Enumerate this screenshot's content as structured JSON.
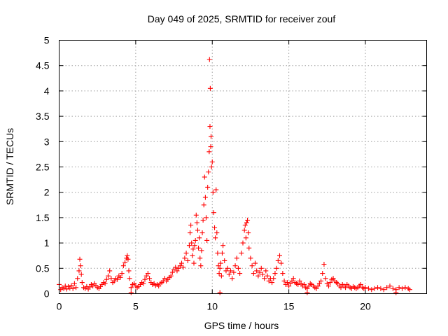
{
  "chart_data": {
    "type": "scatter",
    "title": "Day 049 of 2025, SRMTID for receiver zouf",
    "xlabel": "GPS time / hours",
    "ylabel": "SRMTID / TECUs",
    "xlim": [
      0,
      24
    ],
    "ylim": [
      0,
      5
    ],
    "x_ticks": [
      0,
      5,
      10,
      15,
      20
    ],
    "x_tick_labels": [
      "0",
      "5",
      "10",
      "15",
      "20"
    ],
    "y_ticks": [
      0,
      0.5,
      1,
      1.5,
      2,
      2.5,
      3,
      3.5,
      4,
      4.5,
      5
    ],
    "y_tick_labels": [
      "0",
      "0.5",
      "1",
      "1.5",
      "2",
      "2.5",
      "3",
      "3.5",
      "4",
      "4.5",
      "5"
    ],
    "grid": true,
    "marker": "+",
    "series": [
      {
        "name": "SRMTID",
        "color": "#ff0000",
        "points": [
          [
            0.0,
            0.18
          ],
          [
            0.1,
            0.08
          ],
          [
            0.2,
            0.12
          ],
          [
            0.3,
            0.1
          ],
          [
            0.4,
            0.15
          ],
          [
            0.5,
            0.09
          ],
          [
            0.6,
            0.14
          ],
          [
            0.7,
            0.11
          ],
          [
            0.8,
            0.16
          ],
          [
            0.9,
            0.1
          ],
          [
            1.0,
            0.2
          ],
          [
            1.1,
            0.12
          ],
          [
            1.2,
            0.3
          ],
          [
            1.3,
            0.45
          ],
          [
            1.35,
            0.68
          ],
          [
            1.4,
            0.55
          ],
          [
            1.45,
            0.38
          ],
          [
            1.5,
            0.22
          ],
          [
            1.6,
            0.12
          ],
          [
            1.7,
            0.1
          ],
          [
            1.8,
            0.14
          ],
          [
            1.9,
            0.09
          ],
          [
            2.0,
            0.13
          ],
          [
            2.1,
            0.18
          ],
          [
            2.2,
            0.15
          ],
          [
            2.3,
            0.2
          ],
          [
            2.4,
            0.16
          ],
          [
            2.5,
            0.12
          ],
          [
            2.6,
            0.1
          ],
          [
            2.7,
            0.14
          ],
          [
            2.8,
            0.18
          ],
          [
            2.9,
            0.22
          ],
          [
            3.0,
            0.2
          ],
          [
            3.1,
            0.28
          ],
          [
            3.2,
            0.35
          ],
          [
            3.3,
            0.45
          ],
          [
            3.4,
            0.3
          ],
          [
            3.5,
            0.22
          ],
          [
            3.6,
            0.25
          ],
          [
            3.7,
            0.3
          ],
          [
            3.8,
            0.28
          ],
          [
            3.9,
            0.35
          ],
          [
            4.0,
            0.32
          ],
          [
            4.1,
            0.4
          ],
          [
            4.2,
            0.55
          ],
          [
            4.3,
            0.62
          ],
          [
            4.4,
            0.7
          ],
          [
            4.45,
            0.75
          ],
          [
            4.5,
            0.68
          ],
          [
            4.55,
            0.45
          ],
          [
            4.6,
            0.3
          ],
          [
            4.7,
            0.12
          ],
          [
            4.8,
            0.18
          ],
          [
            4.9,
            0.2
          ],
          [
            5.0,
            0.15
          ],
          [
            5.1,
            0.12
          ],
          [
            5.2,
            0.14
          ],
          [
            5.3,
            0.18
          ],
          [
            5.4,
            0.22
          ],
          [
            5.5,
            0.2
          ],
          [
            5.6,
            0.28
          ],
          [
            5.7,
            0.35
          ],
          [
            5.8,
            0.4
          ],
          [
            5.9,
            0.3
          ],
          [
            6.0,
            0.22
          ],
          [
            6.1,
            0.18
          ],
          [
            6.2,
            0.2
          ],
          [
            6.3,
            0.16
          ],
          [
            6.4,
            0.18
          ],
          [
            6.5,
            0.15
          ],
          [
            6.6,
            0.2
          ],
          [
            6.7,
            0.22
          ],
          [
            6.8,
            0.25
          ],
          [
            6.9,
            0.3
          ],
          [
            7.0,
            0.25
          ],
          [
            7.1,
            0.28
          ],
          [
            7.2,
            0.32
          ],
          [
            7.3,
            0.35
          ],
          [
            7.4,
            0.42
          ],
          [
            7.5,
            0.48
          ],
          [
            7.6,
            0.52
          ],
          [
            7.7,
            0.45
          ],
          [
            7.8,
            0.5
          ],
          [
            7.9,
            0.55
          ],
          [
            8.0,
            0.6
          ],
          [
            8.1,
            0.52
          ],
          [
            8.2,
            0.7
          ],
          [
            8.3,
            0.8
          ],
          [
            8.4,
            0.65
          ],
          [
            8.5,
            0.95
          ],
          [
            8.55,
            1.2
          ],
          [
            8.6,
            1.35
          ],
          [
            8.65,
            1.0
          ],
          [
            8.7,
            0.75
          ],
          [
            8.75,
            0.88
          ],
          [
            8.8,
            0.6
          ],
          [
            8.85,
            0.95
          ],
          [
            8.9,
            1.05
          ],
          [
            8.95,
            1.55
          ],
          [
            9.0,
            1.4
          ],
          [
            9.05,
            1.25
          ],
          [
            9.1,
            0.9
          ],
          [
            9.15,
            1.1
          ],
          [
            9.2,
            0.7
          ],
          [
            9.25,
            0.55
          ],
          [
            9.3,
            0.85
          ],
          [
            9.35,
            1.2
          ],
          [
            9.4,
            1.45
          ],
          [
            9.45,
            1.75
          ],
          [
            9.5,
            2.3
          ],
          [
            9.55,
            1.9
          ],
          [
            9.6,
            1.5
          ],
          [
            9.65,
            1.05
          ],
          [
            9.7,
            2.1
          ],
          [
            9.75,
            2.4
          ],
          [
            9.8,
            2.8
          ],
          [
            9.82,
            4.62
          ],
          [
            9.85,
            3.3
          ],
          [
            9.87,
            4.05
          ],
          [
            9.9,
            2.9
          ],
          [
            9.92,
            3.1
          ],
          [
            9.95,
            2.5
          ],
          [
            10.0,
            2.6
          ],
          [
            10.05,
            2.0
          ],
          [
            10.1,
            1.6
          ],
          [
            10.15,
            1.3
          ],
          [
            10.2,
            1.1
          ],
          [
            10.25,
            2.05
          ],
          [
            10.3,
            1.2
          ],
          [
            10.35,
            0.8
          ],
          [
            10.4,
            0.55
          ],
          [
            10.45,
            0.4
          ],
          [
            10.5,
            0.5
          ],
          [
            10.55,
            0.6
          ],
          [
            10.6,
            0.35
          ],
          [
            10.65,
            0.8
          ],
          [
            10.7,
            0.95
          ],
          [
            10.8,
            0.65
          ],
          [
            10.9,
            0.45
          ],
          [
            11.0,
            0.5
          ],
          [
            11.1,
            0.38
          ],
          [
            11.2,
            0.45
          ],
          [
            11.3,
            0.3
          ],
          [
            11.4,
            0.42
          ],
          [
            11.5,
            0.55
          ],
          [
            11.6,
            0.7
          ],
          [
            11.7,
            0.5
          ],
          [
            11.8,
            0.4
          ],
          [
            11.9,
            0.8
          ],
          [
            12.0,
            1.0
          ],
          [
            12.1,
            1.25
          ],
          [
            12.15,
            1.35
          ],
          [
            12.2,
            1.1
          ],
          [
            12.25,
            1.4
          ],
          [
            12.3,
            1.45
          ],
          [
            12.35,
            1.2
          ],
          [
            12.4,
            0.9
          ],
          [
            12.5,
            0.7
          ],
          [
            12.6,
            0.55
          ],
          [
            12.7,
            0.4
          ],
          [
            12.8,
            0.6
          ],
          [
            12.9,
            0.45
          ],
          [
            13.0,
            0.35
          ],
          [
            13.1,
            0.42
          ],
          [
            13.2,
            0.5
          ],
          [
            13.3,
            0.38
          ],
          [
            13.4,
            0.3
          ],
          [
            13.5,
            0.45
          ],
          [
            13.6,
            0.35
          ],
          [
            13.7,
            0.25
          ],
          [
            13.8,
            0.3
          ],
          [
            13.9,
            0.22
          ],
          [
            14.0,
            0.3
          ],
          [
            14.1,
            0.4
          ],
          [
            14.2,
            0.5
          ],
          [
            14.3,
            0.65
          ],
          [
            14.4,
            0.75
          ],
          [
            14.5,
            0.6
          ],
          [
            14.6,
            0.4
          ],
          [
            14.7,
            0.25
          ],
          [
            14.8,
            0.18
          ],
          [
            14.9,
            0.22
          ],
          [
            15.0,
            0.15
          ],
          [
            15.1,
            0.2
          ],
          [
            15.2,
            0.25
          ],
          [
            15.3,
            0.3
          ],
          [
            15.4,
            0.22
          ],
          [
            15.5,
            0.2
          ],
          [
            15.6,
            0.18
          ],
          [
            15.7,
            0.25
          ],
          [
            15.8,
            0.2
          ],
          [
            15.9,
            0.15
          ],
          [
            16.0,
            0.18
          ],
          [
            16.1,
            0.12
          ],
          [
            16.2,
            0.1
          ],
          [
            16.3,
            0.15
          ],
          [
            16.4,
            0.2
          ],
          [
            16.5,
            0.18
          ],
          [
            16.6,
            0.15
          ],
          [
            16.7,
            0.12
          ],
          [
            16.8,
            0.1
          ],
          [
            16.9,
            0.15
          ],
          [
            17.0,
            0.2
          ],
          [
            17.1,
            0.25
          ],
          [
            17.2,
            0.4
          ],
          [
            17.3,
            0.58
          ],
          [
            17.4,
            0.3
          ],
          [
            17.5,
            0.2
          ],
          [
            17.6,
            0.15
          ],
          [
            17.7,
            0.22
          ],
          [
            17.8,
            0.28
          ],
          [
            17.9,
            0.3
          ],
          [
            18.0,
            0.25
          ],
          [
            18.1,
            0.22
          ],
          [
            18.2,
            0.2
          ],
          [
            18.3,
            0.15
          ],
          [
            18.4,
            0.12
          ],
          [
            18.5,
            0.18
          ],
          [
            18.6,
            0.15
          ],
          [
            18.7,
            0.12
          ],
          [
            18.8,
            0.18
          ],
          [
            18.9,
            0.15
          ],
          [
            19.0,
            0.12
          ],
          [
            19.1,
            0.1
          ],
          [
            19.2,
            0.14
          ],
          [
            19.3,
            0.12
          ],
          [
            19.4,
            0.1
          ],
          [
            19.5,
            0.12
          ],
          [
            19.6,
            0.15
          ],
          [
            19.7,
            0.18
          ],
          [
            19.8,
            0.12
          ],
          [
            19.9,
            0.1
          ],
          [
            20.0,
            0.12
          ],
          [
            20.2,
            0.1
          ],
          [
            20.4,
            0.08
          ],
          [
            20.6,
            0.1
          ],
          [
            20.8,
            0.12
          ],
          [
            21.0,
            0.1
          ],
          [
            21.2,
            0.08
          ],
          [
            21.4,
            0.12
          ],
          [
            21.6,
            0.15
          ],
          [
            21.8,
            0.1
          ],
          [
            22.0,
            0.08
          ],
          [
            22.2,
            0.12
          ],
          [
            22.4,
            0.1
          ],
          [
            22.6,
            0.12
          ],
          [
            22.8,
            0.1
          ],
          [
            22.9,
            0.08
          ],
          [
            4.7,
            0.02
          ],
          [
            10.5,
            0.02
          ],
          [
            16.2,
            0.02
          ],
          [
            22.0,
            0.02
          ]
        ]
      }
    ]
  }
}
